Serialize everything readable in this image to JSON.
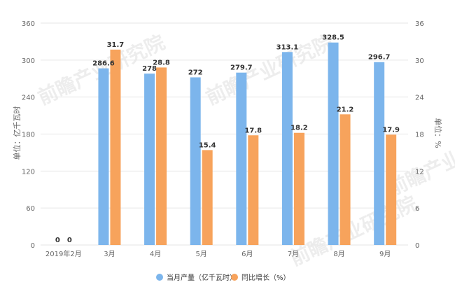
{
  "chart_data": {
    "type": "bar",
    "categories": [
      "2019年2月",
      "3月",
      "4月",
      "5月",
      "6月",
      "7月",
      "8月",
      "9月"
    ],
    "series": [
      {
        "name": "当月产量（亿千瓦时）",
        "axis": "left",
        "color": "#7cb5ec",
        "values": [
          0,
          286.6,
          278,
          272,
          279.7,
          313.1,
          328.5,
          296.7
        ],
        "labels": [
          "0",
          "286.6",
          "278",
          "272",
          "279.7",
          "313.1",
          "328.5",
          "296.7"
        ]
      },
      {
        "name": "同比增长（%）",
        "axis": "right",
        "color": "#f7a35c",
        "values": [
          0,
          31.7,
          28.8,
          15.4,
          17.8,
          18.2,
          21.2,
          17.9
        ],
        "labels": [
          "0",
          "31.7",
          "28.8",
          "15.4",
          "17.8",
          "18.2",
          "21.2",
          "17.9"
        ]
      }
    ],
    "ylabel": "单位：亿千瓦时",
    "y2label": "单位：%",
    "ylim": [
      0,
      360
    ],
    "y2lim": [
      0,
      36
    ],
    "yticks": [
      "0",
      "60",
      "120",
      "180",
      "240",
      "300",
      "360"
    ],
    "y2ticks": [
      "0",
      "6",
      "12",
      "18",
      "24",
      "30",
      "36"
    ],
    "grid": true,
    "legend_position": "bottom-center",
    "watermark": "前瞻产业研究院"
  }
}
